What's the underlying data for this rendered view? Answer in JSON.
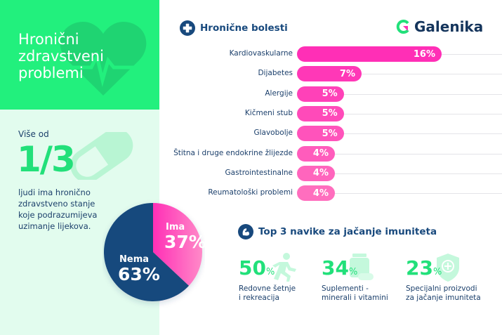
{
  "header": {
    "title": "Hronični\nzdravstveni\nproblemi",
    "brand": "Galenika"
  },
  "stat": {
    "prefix": "Više od",
    "fraction": "1/3",
    "description": "ljudi ima hronično\nzdravstveno stanje\nkoje podrazumijeva\nuzimanje lijekova."
  },
  "chronic": {
    "title": "Hronične bolesti",
    "icon": "plus-circle-icon"
  },
  "habits": {
    "title": "Top 3 navike za jačanje imuniteta",
    "icon": "flexed-arm-icon",
    "items": [
      {
        "value": "50",
        "unit": "%",
        "label": "Redovne šetnje\ni rekreacija",
        "icon": "running-person-icon"
      },
      {
        "value": "34",
        "unit": "%",
        "label": "Suplementi -\nminerali i vitamini",
        "icon": "pills-icon"
      },
      {
        "value": "23",
        "unit": "%",
        "label": "Specijalni proizvodi\nza jačanje imuniteta",
        "icon": "shield-plus-icon"
      }
    ]
  },
  "colors": {
    "green": "#22f07d",
    "mint": "#e2fcee",
    "navy": "#18497d",
    "pink": "#ff2fb6",
    "pink_light": "#ff7ec3"
  },
  "chart_data": [
    {
      "type": "bar",
      "title": "Hronične bolesti",
      "orientation": "horizontal",
      "categories": [
        "Kardiovaskularne",
        "Dijabetes",
        "Alergije",
        "Kičmeni stub",
        "Glavobolje",
        "Štitna i druge endokrine žlijezde",
        "Gastrointestinalne",
        "Reumatološki problemi"
      ],
      "values": [
        16,
        7,
        5,
        5,
        5,
        4,
        4,
        4
      ],
      "value_labels": [
        "16%",
        "7%",
        "5%",
        "5%",
        "5%",
        "4%",
        "4%",
        "4%"
      ],
      "unit": "%",
      "xlim": [
        0,
        16
      ]
    },
    {
      "type": "pie",
      "slices": [
        {
          "label": "Ima",
          "value": 37,
          "value_label": "37%"
        },
        {
          "label": "Nema",
          "value": 63,
          "value_label": "63%"
        }
      ]
    }
  ]
}
